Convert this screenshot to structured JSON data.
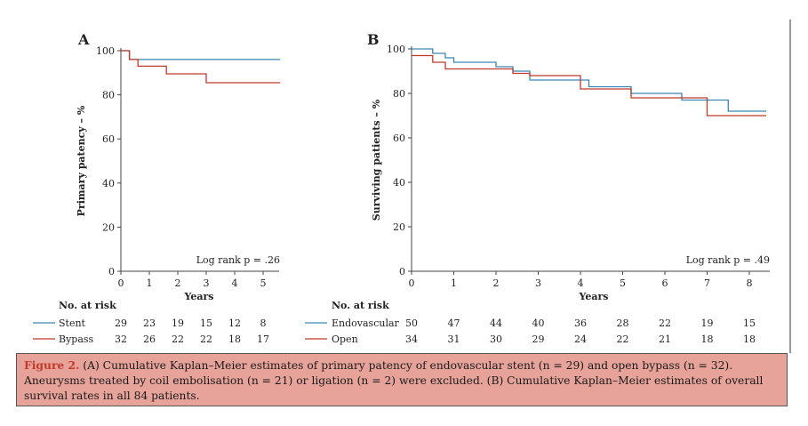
{
  "chart_data": [
    {
      "type": "line",
      "subtype": "kaplan-meier",
      "panel_label": "A",
      "xlabel": "Years",
      "ylabel": "Primary patency – %",
      "xlim": [
        0,
        5.6
      ],
      "ylim": [
        0,
        100
      ],
      "x_ticks": [
        "0",
        "1",
        "2",
        "3",
        "4",
        "5"
      ],
      "y_ticks": [
        "0",
        "20",
        "40",
        "60",
        "80",
        "100"
      ],
      "annotation": "Log rank p = .26",
      "series": [
        {
          "name": "Stent",
          "color": "#3a86b4",
          "x": [
            0,
            0.3,
            0.6,
            5.6
          ],
          "y": [
            100,
            96,
            96,
            96
          ]
        },
        {
          "name": "Bypass",
          "color": "#c0392b",
          "x": [
            0,
            0.3,
            0.6,
            1.6,
            3.0,
            5.6
          ],
          "y": [
            100,
            96,
            93,
            89.5,
            85.5,
            85.5
          ]
        }
      ],
      "risk_table": {
        "title": "No. at risk",
        "rows": [
          {
            "label": "Stent",
            "values": [
              "29",
              "23",
              "19",
              "15",
              "12",
              "8"
            ]
          },
          {
            "label": "Bypass",
            "values": [
              "32",
              "26",
              "22",
              "22",
              "18",
              "17"
            ]
          }
        ]
      }
    },
    {
      "type": "line",
      "subtype": "kaplan-meier",
      "panel_label": "B",
      "xlabel": "Years",
      "ylabel": "Surviving patients – %",
      "xlim": [
        0,
        8.4
      ],
      "ylim": [
        0,
        100
      ],
      "x_ticks": [
        "0",
        "1",
        "2",
        "3",
        "4",
        "5",
        "6",
        "7",
        "8"
      ],
      "y_ticks": [
        "0",
        "20",
        "40",
        "60",
        "80",
        "100"
      ],
      "annotation": "Log rank p = .49",
      "series": [
        {
          "name": "Endovascular",
          "color": "#3a86b4",
          "x": [
            0,
            0.5,
            0.8,
            1.0,
            2.0,
            2.4,
            2.8,
            4.0,
            4.2,
            5.2,
            6.4,
            7.5,
            8.4
          ],
          "y": [
            100,
            98,
            96,
            94,
            92,
            90,
            86,
            86,
            83,
            80,
            77,
            72,
            72
          ]
        },
        {
          "name": "Open",
          "color": "#c0392b",
          "x": [
            0,
            0.5,
            0.8,
            2.0,
            2.4,
            2.8,
            3.8,
            4.0,
            5.2,
            6.0,
            6.8,
            7.0,
            8.4
          ],
          "y": [
            97,
            94,
            91,
            91,
            89,
            88,
            88,
            82,
            78,
            78,
            78,
            70,
            70
          ]
        }
      ],
      "risk_table": {
        "title": "No. at risk",
        "rows": [
          {
            "label": "Endovascular",
            "values": [
              "50",
              "47",
              "44",
              "40",
              "36",
              "28",
              "22",
              "19",
              "15"
            ]
          },
          {
            "label": "Open",
            "values": [
              "34",
              "31",
              "30",
              "29",
              "24",
              "22",
              "21",
              "18",
              "18"
            ]
          }
        ]
      }
    }
  ],
  "caption": {
    "label": "Figure 2.",
    "text": "(A) Cumulative Kaplan–Meier estimates of primary patency of endovascular stent (n = 29) and open bypass (n = 32). Aneurysms treated by coil embolisation (n = 21) or ligation (n = 2) were excluded. (B) Cumulative Kaplan–Meier estimates of overall survival rates in all 84 patients."
  },
  "colors": {
    "caption_bg": "#e7a39a",
    "stent": "#3a86b4",
    "bypass": "#c0392b"
  }
}
